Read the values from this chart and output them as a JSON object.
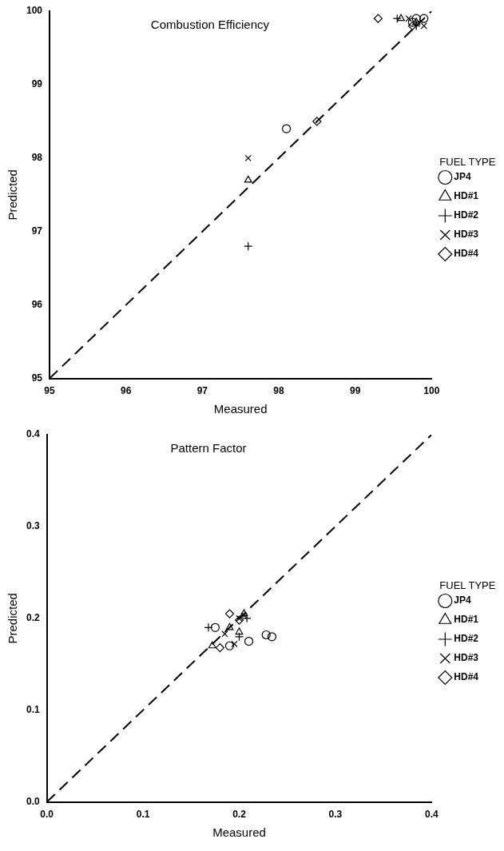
{
  "chart_data": [
    {
      "type": "scatter",
      "title": "Combustion Efficiency",
      "xlabel": "Measured",
      "ylabel": "Predicted",
      "legend_title": "FUEL TYPE",
      "legend": "right",
      "grid": false,
      "xlim": [
        95,
        100
      ],
      "xticks": [
        95,
        96,
        97,
        98,
        99,
        100
      ],
      "ylim": [
        95,
        100
      ],
      "yticks": [
        95,
        96,
        97,
        98,
        99,
        100
      ],
      "series": [
        {
          "name": "JP4",
          "color": "#000000",
          "marker": "circle",
          "x": [
            98.1,
            99.75,
            99.9,
            99.8
          ],
          "values": [
            98.4,
            99.85,
            99.9,
            99.9
          ]
        },
        {
          "name": "HD#1",
          "color": "#000000",
          "marker": "triangle",
          "x": [
            97.6,
            99.6,
            99.8
          ],
          "values": [
            97.7,
            99.9,
            99.85
          ]
        },
        {
          "name": "HD#2",
          "color": "#000000",
          "marker": "cross",
          "x": [
            97.6,
            99.55,
            99.8
          ],
          "values": [
            96.8,
            99.9,
            99.8
          ]
        },
        {
          "name": "HD#3",
          "color": "#000000",
          "marker": "x",
          "x": [
            97.6,
            99.9,
            99.7
          ],
          "values": [
            98.0,
            99.8,
            99.9
          ]
        },
        {
          "name": "HD#4",
          "color": "#000000",
          "marker": "diamond",
          "x": [
            98.5,
            99.3,
            99.75
          ],
          "values": [
            98.5,
            99.9,
            99.8
          ]
        },
        {
          "type": "line",
          "color": "#000000",
          "line_style": "dashed",
          "marker": "none",
          "x": [
            95,
            100
          ],
          "values": [
            95,
            100
          ]
        }
      ]
    },
    {
      "type": "scatter",
      "title": "Pattern Factor",
      "xlabel": "Measured",
      "ylabel": "Predicted",
      "legend_title": "FUEL TYPE",
      "legend": "right",
      "grid": false,
      "xlim": [
        0,
        0.4
      ],
      "xticks": [
        {
          "value": 0,
          "label": "0.0"
        },
        0.1,
        0.2,
        0.3,
        0.4
      ],
      "ylim": [
        0,
        0.4
      ],
      "yticks": [
        {
          "value": 0,
          "label": "0.0"
        },
        0.1,
        0.2,
        0.3,
        0.4
      ],
      "series": [
        {
          "name": "JP4",
          "color": "#000000",
          "marker": "circle",
          "x": [
            0.175,
            0.19,
            0.21,
            0.228,
            0.234
          ],
          "values": [
            0.19,
            0.17,
            0.175,
            0.182,
            0.18
          ]
        },
        {
          "name": "HD#1",
          "color": "#000000",
          "marker": "triangle",
          "x": [
            0.172,
            0.19,
            0.2,
            0.205
          ],
          "values": [
            0.17,
            0.19,
            0.185,
            0.205
          ]
        },
        {
          "name": "HD#2",
          "color": "#000000",
          "marker": "cross",
          "x": [
            0.168,
            0.2,
            0.208
          ],
          "values": [
            0.19,
            0.18,
            0.2
          ]
        },
        {
          "name": "HD#3",
          "color": "#000000",
          "marker": "x",
          "x": [
            0.185,
            0.195,
            0.2,
            0.205
          ],
          "values": [
            0.183,
            0.172,
            0.2,
            0.203
          ]
        },
        {
          "name": "HD#4",
          "color": "#000000",
          "marker": "diamond",
          "x": [
            0.18,
            0.19,
            0.2
          ],
          "values": [
            0.168,
            0.205,
            0.198
          ]
        },
        {
          "type": "line",
          "color": "#000000",
          "line_style": "dashed",
          "marker": "none",
          "x": [
            0,
            0.4
          ],
          "values": [
            0,
            0.4
          ]
        }
      ]
    }
  ]
}
